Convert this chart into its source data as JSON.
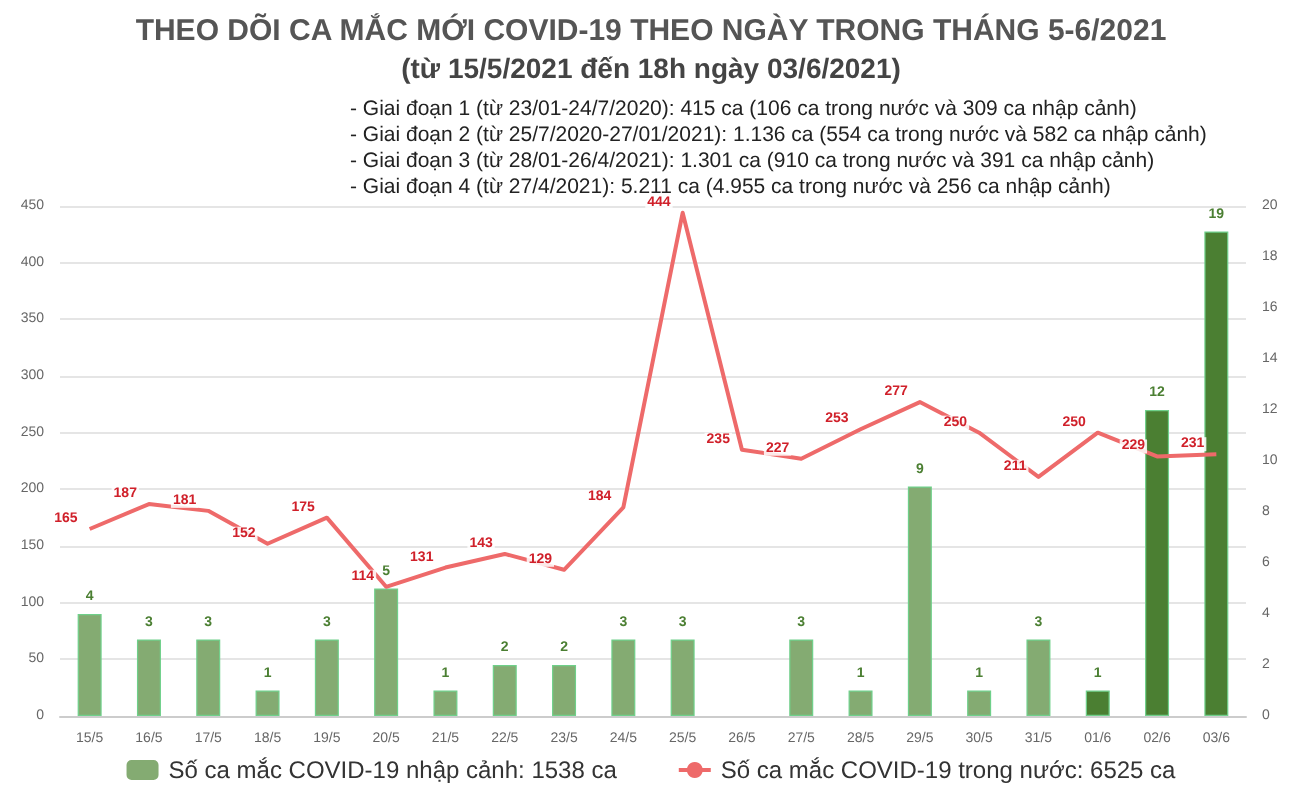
{
  "chart_data": {
    "type": "bar",
    "title": "THEO DÕI CA MẮC MỚI COVID-19 THEO NGÀY TRONG THÁNG 5-6/2021",
    "subtitle": "(từ 15/5/2021 đến 18h ngày 03/6/2021)",
    "annotations": [
      "- Giai đoạn 1 (từ 23/01-24/7/2020): 415 ca (106 ca trong nước và 309 ca nhập cảnh)",
      "- Giai đoạn 2 (từ 25/7/2020-27/01/2021): 1.136 ca (554 ca trong nước và 582 ca nhập cảnh)",
      "- Giai đoạn 3 (từ 28/01-26/4/2021): 1.301 ca (910 ca trong nước và 391 ca nhập cảnh)",
      "- Giai đoạn 4 (từ 27/4/2021): 5.211 ca (4.955 ca trong nước và 256 ca nhập cảnh)"
    ],
    "categories": [
      "15/5",
      "16/5",
      "17/5",
      "18/5",
      "19/5",
      "20/5",
      "21/5",
      "22/5",
      "23/5",
      "24/5",
      "25/5",
      "26/5",
      "27/5",
      "28/5",
      "29/5",
      "30/5",
      "31/5",
      "01/6",
      "02/6",
      "03/6"
    ],
    "series": [
      {
        "name": "Số ca mắc COVID-19 nhập cảnh: 1538 ca",
        "axis": "y2",
        "color": "#84ab72",
        "colors": [
          "#84ab72",
          "#84ab72",
          "#84ab72",
          "#84ab72",
          "#84ab72",
          "#84ab72",
          "#84ab72",
          "#84ab72",
          "#84ab72",
          "#84ab72",
          "#84ab72",
          "#84ab72",
          "#84ab72",
          "#84ab72",
          "#84ab72",
          "#84ab72",
          "#84ab72",
          "#4b7f32",
          "#4b7f32",
          "#4b7f32"
        ],
        "values": [
          4,
          3,
          3,
          1,
          3,
          5,
          1,
          2,
          2,
          3,
          3,
          null,
          3,
          1,
          9,
          1,
          3,
          1,
          12,
          19
        ]
      },
      {
        "name": "Số ca mắc COVID-19 trong nước: 6525 ca",
        "type": "line",
        "color": "#ee6a6a",
        "values": [
          165,
          187,
          181,
          152,
          175,
          114,
          131,
          143,
          129,
          184,
          444,
          235,
          227,
          253,
          277,
          250,
          211,
          250,
          229,
          231
        ]
      }
    ],
    "ylim": [
      0,
      450
    ],
    "yticks": [
      0,
      50,
      100,
      150,
      200,
      250,
      300,
      350,
      400,
      450
    ],
    "y2lim": [
      0,
      20
    ],
    "y2ticks": [
      0,
      2,
      4,
      6,
      8,
      10,
      12,
      14,
      16,
      18,
      20
    ],
    "grid": "y",
    "legend": "bottom",
    "data_labels": true,
    "marker": "none",
    "line_style": "solid"
  }
}
